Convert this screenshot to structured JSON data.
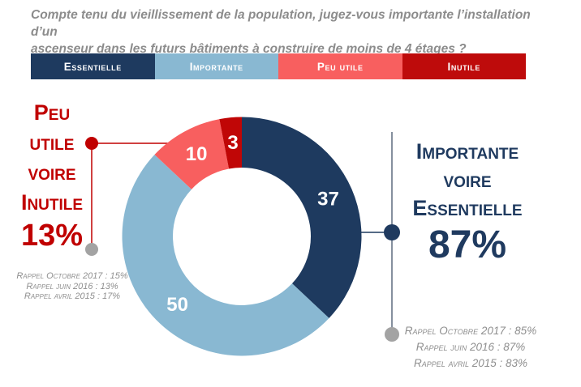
{
  "title": {
    "line1": "Compte tenu du vieillissement de la population, jugez-vous importante l’installation d’un",
    "line2": "ascenseur dans les futurs bâtiments à construire de moins de 4 étages ?"
  },
  "legend": {
    "items": [
      {
        "label": "Essentielle",
        "color": "#1E3A5F"
      },
      {
        "label": "Importante",
        "color": "#89B8D2"
      },
      {
        "label": "Peu utile",
        "color": "#F85F5F"
      },
      {
        "label": "Inutile",
        "color": "#BE0B0B"
      }
    ]
  },
  "chart_data": {
    "type": "pie",
    "subtype": "donut",
    "title": "Compte tenu du vieillissement de la population, jugez-vous importante l’installation d’un ascenseur dans les futurs bâtiments à construire de moins de 4 étages ?",
    "categories": [
      "Essentielle",
      "Importante",
      "Peu utile",
      "Inutile"
    ],
    "values": [
      37,
      50,
      10,
      3
    ],
    "colors": [
      "#1E3A5F",
      "#89B8D2",
      "#F85F5F",
      "#C00606"
    ],
    "start_angle_deg": 0,
    "direction": "clockwise",
    "data_labels_shown": [
      37,
      50,
      10,
      3
    ],
    "legend_position": "top"
  },
  "left_callout": {
    "lines": [
      "Peu",
      "utile",
      "voire",
      "Inutile"
    ],
    "value": "13%",
    "color": "#C00000",
    "rappels": [
      "Rappel Octobre 2017 : 15%",
      "Rappel juin 2016 : 13%",
      "Rappel avril 2015 : 17%"
    ]
  },
  "right_callout": {
    "lines": [
      "Importante",
      "voire",
      "Essentielle"
    ],
    "value": "87%",
    "color": "#1F3A5F",
    "rappels": [
      "Rappel Octobre 2017 : 85%",
      "Rappel juin 2016 : 87%",
      "Rappel avril 2015 : 83%"
    ]
  },
  "colors": {
    "title_gray": "#8C8C8C",
    "rappel_gray": "#8F8F8F",
    "dot_gray": "#A3A3A3",
    "callout_red": "#C00000",
    "callout_navy": "#1F3A5F",
    "right_line_gray": "#44546A"
  }
}
